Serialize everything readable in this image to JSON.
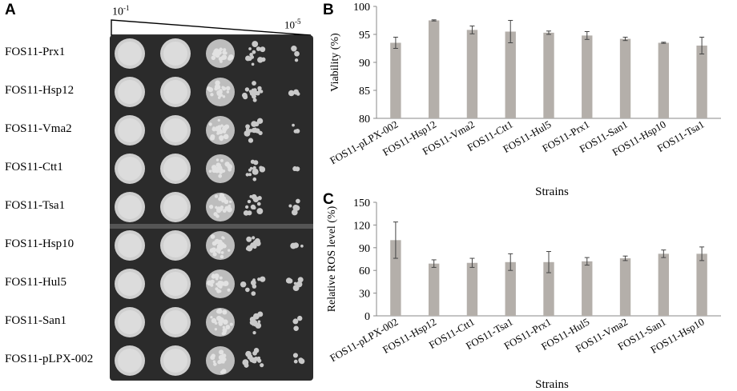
{
  "panels": {
    "a": "A",
    "b": "B",
    "c": "C"
  },
  "panel_a": {
    "dilution_start": "10",
    "dilution_start_exp": "-1",
    "dilution_end": "10",
    "dilution_end_exp": "-5",
    "strains": [
      "FOS11-Prx1",
      "FOS11-Hsp12",
      "FOS11-Vma2",
      "FOS11-Ctt1",
      "FOS11-Tsa1",
      "FOS11-Hsp10",
      "FOS11-Hul5",
      "FOS11-San1",
      "FOS11-pLPX-002"
    ]
  },
  "chart_data": [
    {
      "type": "bar",
      "panel": "B",
      "categories": [
        "FOS11-pLPX-002",
        "FOS11-Hsp12",
        "FOS11-Vma2",
        "FOS11-Ctt1",
        "FOS11-Hul5",
        "FOS11-Prx1",
        "FOS11-San1",
        "FOS11-Hsp10",
        "FOS11-Tsa1"
      ],
      "values": [
        93.5,
        97.5,
        95.8,
        95.5,
        95.3,
        94.8,
        94.2,
        93.5,
        93.0
      ],
      "errors": [
        1.0,
        0.1,
        0.7,
        2.0,
        0.3,
        0.7,
        0.3,
        0.1,
        1.5
      ],
      "ylabel": "Viability (%)",
      "xlabel": "Strains",
      "ylim": [
        80,
        100
      ],
      "yticks": [
        80,
        85,
        90,
        95,
        100
      ],
      "grid": false,
      "bar_color": "#b4afaa"
    },
    {
      "type": "bar",
      "panel": "C",
      "categories": [
        "FOS11-pLPX-002",
        "FOS11-Hsp12",
        "FOS11-Ctt1",
        "FOS11-Tsa1",
        "FOS11-Prx1",
        "FOS11-Hul5",
        "FOS11-Vma2",
        "FOS11-San1",
        "FOS11-Hsp10"
      ],
      "values": [
        100,
        69,
        70,
        71,
        71,
        72,
        76,
        82,
        82
      ],
      "errors": [
        24,
        5,
        6,
        11,
        14,
        5,
        3,
        5,
        9
      ],
      "ylabel": "Relative ROS level (%)",
      "xlabel": "Strains",
      "ylim": [
        0,
        150
      ],
      "yticks": [
        0,
        30,
        60,
        90,
        120,
        150
      ],
      "grid": false,
      "bar_color": "#b4afaa"
    }
  ]
}
